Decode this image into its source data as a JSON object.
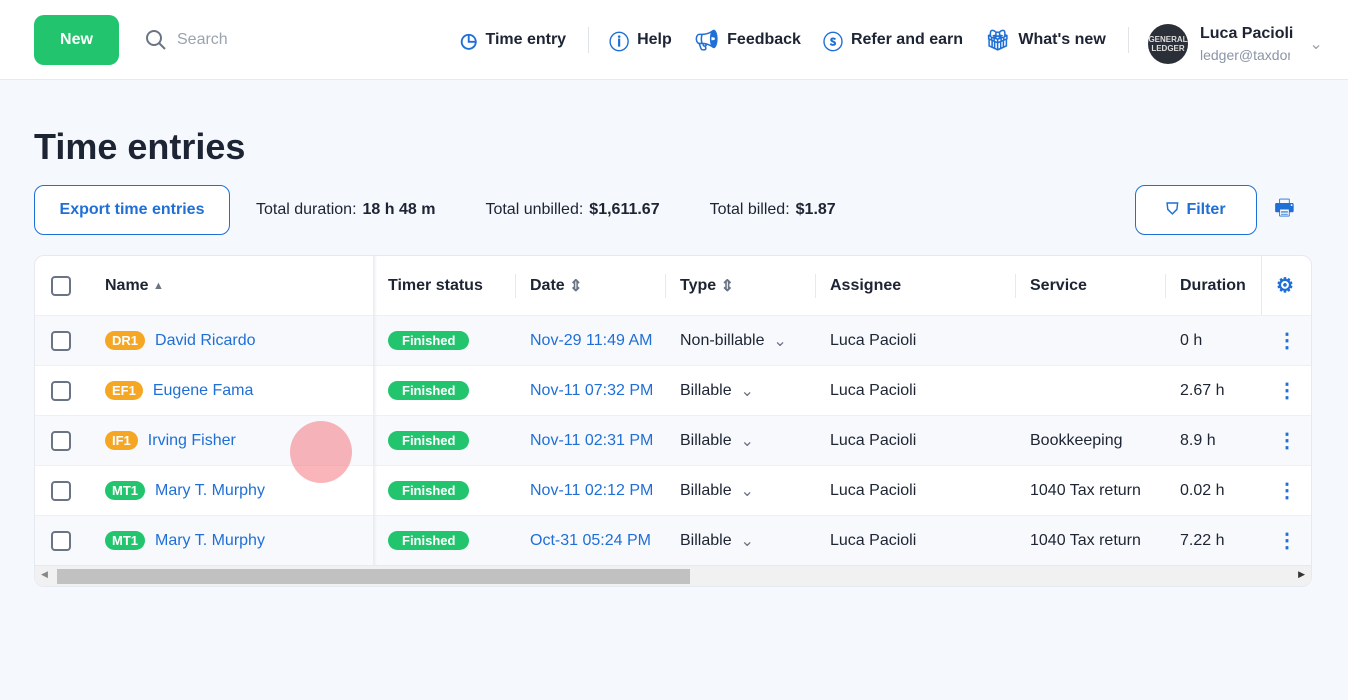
{
  "header": {
    "new_label": "New",
    "search_placeholder": "Search",
    "nav": [
      {
        "icon": "clock-icon",
        "label": "Time entry"
      },
      {
        "icon": "help-icon",
        "label": "Help"
      },
      {
        "icon": "megaphone-icon",
        "label": "Feedback"
      },
      {
        "icon": "dollar-icon",
        "label": "Refer and earn"
      },
      {
        "icon": "gift-icon",
        "label": "What's new"
      }
    ],
    "user": {
      "name": "Luca Pacioli",
      "email": "ledger@taxdome.com",
      "avatar_text": "GENERAL LEDGER"
    }
  },
  "page": {
    "title": "Time entries",
    "export_label": "Export time entries",
    "filter_label": "Filter",
    "totals": [
      {
        "label": "Total duration:",
        "value": "18 h 48 m"
      },
      {
        "label": "Total unbilled:",
        "value": "$1,611.67"
      },
      {
        "label": "Total billed:",
        "value": "$1.87"
      }
    ]
  },
  "table": {
    "columns": [
      "Name",
      "Timer status",
      "Date",
      "Type",
      "Assignee",
      "Service",
      "Duration"
    ],
    "rows": [
      {
        "badge": "DR1",
        "badge_color": "#f5a623",
        "name": "David Ricardo",
        "status": "Finished",
        "date": "Nov-29 11:49 AM",
        "type": "Non-billable",
        "assignee": "Luca Pacioli",
        "service": "",
        "duration": "0 h"
      },
      {
        "badge": "EF1",
        "badge_color": "#f5a623",
        "name": "Eugene Fama",
        "status": "Finished",
        "date": "Nov-11 07:32 PM",
        "type": "Billable",
        "assignee": "Luca Pacioli",
        "service": "",
        "duration": "2.67 h"
      },
      {
        "badge": "IF1",
        "badge_color": "#f5a623",
        "name": "Irving Fisher",
        "status": "Finished",
        "date": "Nov-11 02:31 PM",
        "type": "Billable",
        "assignee": "Luca Pacioli",
        "service": "Bookkeeping",
        "duration": "8.9 h"
      },
      {
        "badge": "MT1",
        "badge_color": "#22c46d",
        "name": "Mary T. Murphy",
        "status": "Finished",
        "date": "Nov-11 02:12 PM",
        "type": "Billable",
        "assignee": "Luca Pacioli",
        "service": "1040 Tax return",
        "duration": "0.02 h"
      },
      {
        "badge": "MT1",
        "badge_color": "#22c46d",
        "name": "Mary T. Murphy",
        "status": "Finished",
        "date": "Oct-31 05:24 PM",
        "type": "Billable",
        "assignee": "Luca Pacioli",
        "service": "1040 Tax return",
        "duration": "7.22 h"
      }
    ]
  }
}
